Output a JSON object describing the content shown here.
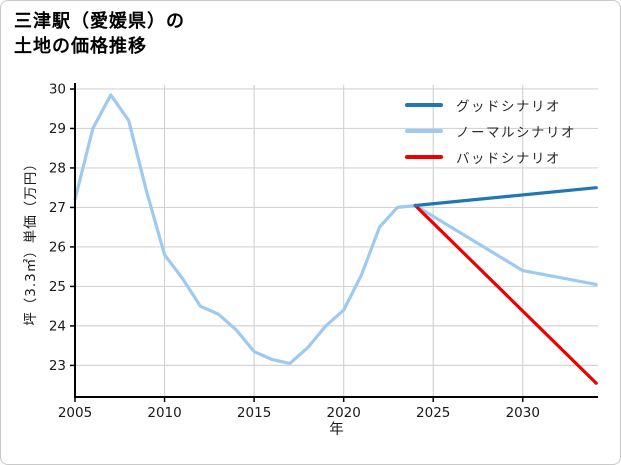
{
  "title": {
    "line1": "三津駅（愛媛県）の",
    "line2": "土地の価格推移"
  },
  "legend": {
    "items": [
      {
        "label": "グッドシナリオ",
        "color": "#1f77b4"
      },
      {
        "label": "ノーマルシナリオ",
        "color": "#9ecaf2"
      },
      {
        "label": "バッドシナリオ",
        "color": "#ee0000"
      }
    ]
  },
  "chart_data": {
    "type": "line",
    "title": "三津駅（愛媛県）の土地の価格推移",
    "xlabel": "年",
    "ylabel": "坪（3.3㎡）単価（万円）",
    "xlim": [
      2005,
      2034.2
    ],
    "ylim": [
      22.2,
      30.1
    ],
    "xticks": [
      2005,
      2010,
      2015,
      2020,
      2025,
      2030
    ],
    "yticks": [
      23,
      24,
      25,
      26,
      27,
      28,
      29,
      30
    ],
    "grid": true,
    "legend_position": "upper right",
    "axis_color": "#000000",
    "grid_color": "#d4d4d4",
    "series": [
      {
        "id": "historical",
        "color": "#9ecaf2",
        "width": 3.2,
        "points": [
          [
            2005,
            27.2
          ],
          [
            2006,
            29.0
          ],
          [
            2007,
            29.85
          ],
          [
            2008,
            29.2
          ],
          [
            2009,
            27.4
          ],
          [
            2010,
            25.8
          ],
          [
            2011,
            25.2
          ],
          [
            2012,
            24.5
          ],
          [
            2013,
            24.3
          ],
          [
            2014,
            23.9
          ],
          [
            2015,
            23.35
          ],
          [
            2016,
            23.15
          ],
          [
            2017,
            23.05
          ],
          [
            2018,
            23.45
          ],
          [
            2019,
            24.0
          ],
          [
            2020,
            24.4
          ],
          [
            2021,
            25.3
          ],
          [
            2022,
            26.5
          ],
          [
            2023,
            27.0
          ],
          [
            2024,
            27.05
          ]
        ]
      },
      {
        "id": "normal-scenario",
        "name": "ノーマルシナリオ",
        "color": "#9ecaf2",
        "width": 3.2,
        "points": [
          [
            2024,
            27.05
          ],
          [
            2030,
            25.4
          ],
          [
            2034.1,
            25.05
          ]
        ]
      },
      {
        "id": "bad-scenario",
        "name": "バッドシナリオ",
        "color": "#ee0000",
        "width": 3.2,
        "points": [
          [
            2024,
            27.05
          ],
          [
            2034.1,
            22.55
          ]
        ]
      },
      {
        "id": "good-scenario",
        "name": "グッドシナリオ",
        "color": "#1f77b4",
        "width": 3.2,
        "points": [
          [
            2024,
            27.05
          ],
          [
            2034.1,
            27.5
          ]
        ]
      }
    ]
  }
}
